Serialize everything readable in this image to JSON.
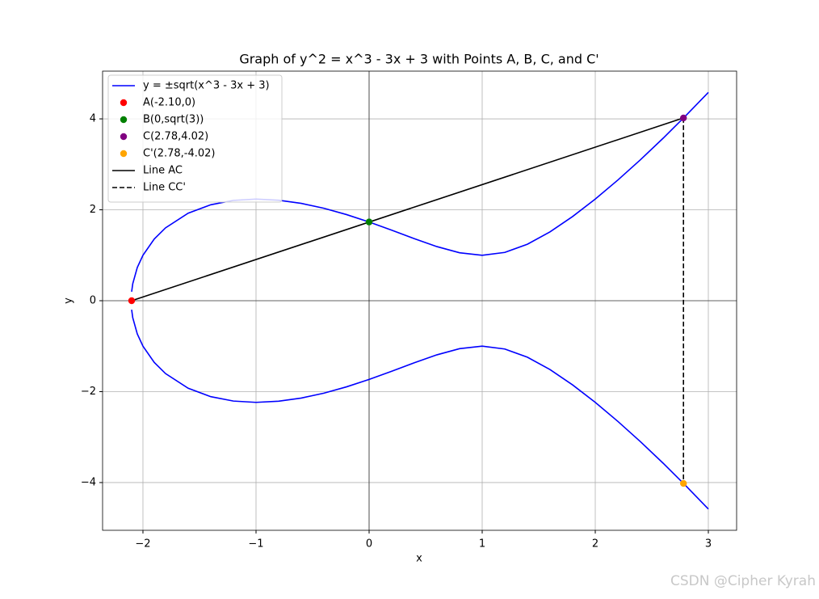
{
  "chart_data": {
    "type": "line",
    "title": "Graph of y^2 = x^3 - 3x + 3 with Points A, B, C, and C'",
    "xlabel": "x",
    "ylabel": "y",
    "xlim": [
      -2.357,
      3.25
    ],
    "ylim": [
      -5.05,
      5.05
    ],
    "xticks": [
      {
        "value": -2,
        "label": "−2"
      },
      {
        "value": -1,
        "label": "−1"
      },
      0,
      1,
      2,
      3
    ],
    "yticks": [
      {
        "value": -4,
        "label": "−4"
      },
      {
        "value": -2,
        "label": "−2"
      },
      0,
      2,
      4
    ],
    "grid": true,
    "legend": "upper left",
    "axhline": 0,
    "axvline": 0,
    "x": [
      -2.1,
      -2.09,
      -2.05,
      -2.0,
      -1.9,
      -1.8,
      -1.6,
      -1.4,
      -1.2,
      -1.0,
      -0.8,
      -0.6,
      -0.4,
      -0.2,
      0,
      0.2,
      0.4,
      0.6,
      0.8,
      1.0,
      1.2,
      1.4,
      1.6,
      1.8,
      2.0,
      2.2,
      2.4,
      2.6,
      2.8,
      3.0
    ],
    "series": [
      {
        "name": "y = ±sqrt(x^3 - 3x + 3)",
        "color": "#0000ff",
        "values": [
          0.197,
          0.375,
          0.731,
          1,
          1.357,
          1.603,
          1.925,
          2.111,
          2.207,
          2.236,
          2.211,
          2.141,
          2.034,
          1.895,
          1.732,
          1.552,
          1.365,
          1.19,
          1.055,
          1,
          1.062,
          1.243,
          1.515,
          1.853,
          2.236,
          2.655,
          3.102,
          3.574,
          4.068,
          4.583
        ]
      },
      {
        "color": "#0000ff",
        "values": [
          -0.197,
          -0.375,
          -0.731,
          -1,
          -1.357,
          -1.603,
          -1.925,
          -2.111,
          -2.207,
          -2.236,
          -2.211,
          -2.141,
          -2.034,
          -1.895,
          -1.732,
          -1.552,
          -1.365,
          -1.19,
          -1.055,
          -1,
          -1.062,
          -1.243,
          -1.515,
          -1.853,
          -2.236,
          -2.655,
          -3.102,
          -3.574,
          -4.068,
          -4.583
        ]
      }
    ],
    "points": [
      {
        "name": "A(-2.10,0)",
        "x": -2.1,
        "y": 0,
        "color": "#ff0000"
      },
      {
        "name": "B(0,sqrt(3))",
        "x": 0,
        "y": 1.732,
        "color": "#008000"
      },
      {
        "name": "C(2.78,4.02)",
        "x": 2.78,
        "y": 4.02,
        "color": "#800080"
      },
      {
        "name": "C'(2.78,-4.02)",
        "x": 2.78,
        "y": -4.02,
        "color": "#ffa500"
      }
    ],
    "lines": [
      {
        "name": "Line AC",
        "x": [
          -2.1,
          2.78
        ],
        "y": [
          0,
          4.02
        ],
        "color": "#000000",
        "dashed": false
      },
      {
        "name": "Line CC'",
        "x": [
          2.78,
          2.78
        ],
        "y": [
          4.02,
          -4.02
        ],
        "color": "#000000",
        "dashed": true
      }
    ]
  },
  "watermark": "CSDN @Cipher Kyrah"
}
